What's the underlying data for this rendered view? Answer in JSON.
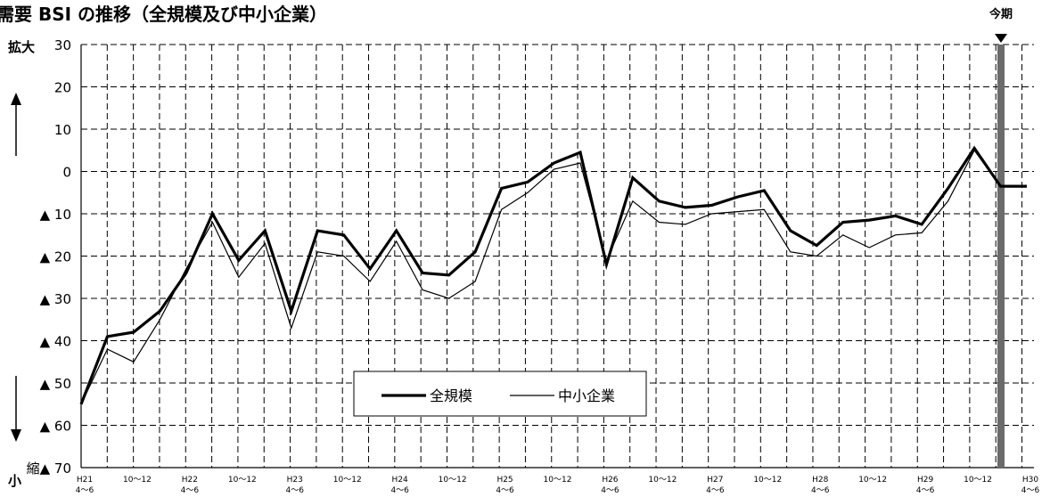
{
  "chart_data": {
    "type": "line",
    "title": "需要 BSI の推移（全規模及び中小企業）",
    "y_axis": {
      "ticks": [
        "30",
        "20",
        "10",
        "0",
        "▲ 10",
        "▲ 20",
        "▲ 30",
        "▲ 40",
        "▲ 50",
        "▲ 60",
        "縮▲ 70"
      ],
      "tick_values": [
        30,
        20,
        10,
        0,
        -10,
        -20,
        -30,
        -40,
        -50,
        -60,
        -70
      ],
      "ylim": [
        -70,
        30
      ],
      "top_label": "拡大",
      "bottom_label": "縮小",
      "grid": true
    },
    "x_tick_labels": [
      [
        "H21",
        "4～6"
      ],
      [
        "10～12"
      ],
      [
        "H22",
        "4～6"
      ],
      [
        "10～12"
      ],
      [
        "H23",
        "4～6"
      ],
      [
        "10～12"
      ],
      [
        "H24",
        "4～6"
      ],
      [
        "10～12"
      ],
      [
        "H25",
        "4～6"
      ],
      [
        "10～12"
      ],
      [
        "H26",
        "4～6"
      ],
      [
        "10～12"
      ],
      [
        "H27",
        "4～6"
      ],
      [
        "10～12"
      ],
      [
        "H28",
        "4～6"
      ],
      [
        "10～12"
      ],
      [
        "H29",
        "4～6"
      ],
      [
        "10～12"
      ],
      [
        "H30",
        "4～6"
      ]
    ],
    "current_period_label": "今期",
    "current_period_index": 71,
    "legend": {
      "position": "center-bottom"
    },
    "series": [
      {
        "name": "全規模",
        "values": [
          -55,
          -39,
          -38,
          -33,
          -24,
          -10,
          -21,
          -14,
          -33,
          -14,
          -15,
          -23,
          -14,
          -24,
          -24.5,
          -19,
          -4,
          -2.5,
          2,
          4.5,
          -22,
          -1.5,
          -7,
          -8.5,
          -8,
          -6,
          -4.5,
          -14,
          -17.5,
          -12,
          -11.5,
          -10.5,
          -12.5,
          -4,
          5.5,
          -3.5,
          -3.5
        ]
      },
      {
        "name": "中小企業",
        "values": [
          -55,
          -42,
          -45,
          -35,
          -23,
          -12,
          -25,
          -17,
          -37,
          -19,
          -20,
          -26,
          -16.5,
          -28,
          -30,
          -26,
          -9,
          -5,
          0.5,
          2,
          -21,
          -7,
          -12,
          -12.5,
          -10,
          -9.5,
          -9,
          -19,
          -20,
          -15,
          -18,
          -15,
          -14.5,
          -7,
          5,
          -3.5,
          -3.5
        ]
      }
    ]
  }
}
